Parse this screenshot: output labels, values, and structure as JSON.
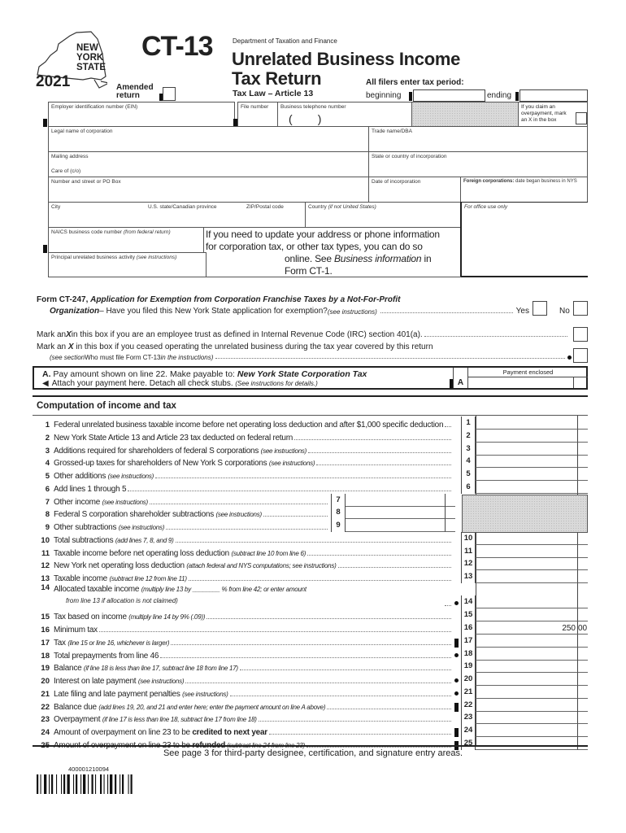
{
  "header": {
    "state_logo": "NEW YORK STATE",
    "year": "2021",
    "form_number": "CT-13",
    "department": "Department of Taxation and Finance",
    "title_line1": "Unrelated Business Income",
    "title_line2": "Tax Return",
    "tax_law": "Tax Law – Article 13",
    "amended_label_1": "Amended",
    "amended_label_2": "return",
    "tax_period_label": "All filers enter tax period:",
    "beginning_label": "beginning",
    "ending_label": "ending"
  },
  "identity": {
    "ein": "Employer identification number (EIN)",
    "file_number": "File number",
    "phone": "Business telephone number",
    "phone_parens": "(        )",
    "overpayment_1": "If you claim an",
    "overpayment_2": "overpayment, mark",
    "overpayment_3": "an X in the box",
    "legal_name": "Legal name of corporation",
    "trade_name": "Trade name/DBA",
    "mailing": "Mailing address",
    "care_of": "Care of (c/o)",
    "state_incorp": "State or country of incorporation",
    "street": "Number and street or PO Box",
    "date_incorp": "Date of incorporation",
    "foreign_bold": "Foreign corporations:",
    "foreign_rest": " date began business in NYS",
    "city": "City",
    "state_prov": "U.S. state/Canadian province",
    "zip": "ZIP/Postal code",
    "country": "Country ",
    "country_note": "(if not United States)",
    "office_use": "For office use only",
    "naics": "NAICS business code number ",
    "naics_note": "(from federal return)",
    "activity": "Principal unrelated business activity ",
    "activity_note": "(see instructions)",
    "notice_1": "If you need to update your address or phone information",
    "notice_2": "for corporation tax, or other tax types, you can do so",
    "notice_3a": "online. See ",
    "notice_3b": "Business information",
    "notice_3c": " in",
    "notice_4": "Form CT-1."
  },
  "questions": {
    "ct247_a": "Form CT-247, ",
    "ct247_b": "Application for Exemption from Corporation Franchise Taxes by a Not-For-Profit",
    "ct247_c": "Organization",
    "ct247_d": " – Have you filed this New York State application for exemption? ",
    "ct247_e": "(see instructions)",
    "yes": "Yes",
    "no": "No",
    "trust_a": "Mark an ",
    "trust_x": "X",
    "trust_b": " in this box if you are an employee trust as defined in Internal Revenue Code (IRC) section 401(a).",
    "ceased_b": " in this box if you ceased operating the unrelated business during the tax year covered by this return",
    "ceased_c": "(see section ",
    "ceased_d": "Who must file Form CT-13",
    "ceased_e": " in the instructions)"
  },
  "payment": {
    "a_label": "A.",
    "line1a": " Pay amount shown on line 22. Make payable to: ",
    "line1b": "New York State Corporation Tax",
    "line2a": "Attach your payment here. Detach all check stubs. ",
    "line2b": "(See instructions for details.)",
    "col": "A",
    "enclosed": "Payment enclosed"
  },
  "computation": {
    "heading": "Computation of income and tax",
    "lines": [
      {
        "n": "1",
        "parts": [
          {
            "t": "Federal unrelated business taxable income before net operating loss deduction and after $1,000 specific deduction"
          }
        ]
      },
      {
        "n": "2",
        "parts": [
          {
            "t": "New York State Article 13 and Article 23 tax deducted on federal return"
          }
        ]
      },
      {
        "n": "3",
        "parts": [
          {
            "t": "Additions required for shareholders of federal S corporations "
          },
          {
            "t": "(see instructions)",
            "s": "i"
          }
        ]
      },
      {
        "n": "4",
        "parts": [
          {
            "t": "Grossed-up taxes for shareholders of New York S corporations "
          },
          {
            "t": "(see instructions)",
            "s": "i"
          }
        ]
      },
      {
        "n": "5",
        "parts": [
          {
            "t": "Other additions "
          },
          {
            "t": "(see instructions)",
            "s": "i"
          }
        ]
      },
      {
        "n": "6",
        "parts": [
          {
            "t": "Add lines 1 through 5"
          }
        ]
      },
      {
        "n": "7",
        "inner": true,
        "parts": [
          {
            "t": "Other income "
          },
          {
            "t": "(see instructions)",
            "s": "i"
          }
        ]
      },
      {
        "n": "8",
        "inner": true,
        "parts": [
          {
            "t": "Federal S corporation shareholder subtractions "
          },
          {
            "t": "(see instructions)",
            "s": "i"
          }
        ]
      },
      {
        "n": "9",
        "inner": true,
        "parts": [
          {
            "t": "Other subtractions "
          },
          {
            "t": "(see instructions)",
            "s": "i"
          }
        ]
      },
      {
        "n": "10",
        "parts": [
          {
            "t": "Total subtractions "
          },
          {
            "t": "(add lines 7, 8, and 9)",
            "s": "i"
          }
        ]
      },
      {
        "n": "11",
        "parts": [
          {
            "t": "Taxable income before net operating loss deduction "
          },
          {
            "t": "(subtract line 10 from line 6)",
            "s": "i"
          }
        ]
      },
      {
        "n": "12",
        "parts": [
          {
            "t": "New York net operating loss deduction "
          },
          {
            "t": "(attach federal and NYS computations; see instructions)",
            "s": "i"
          }
        ]
      },
      {
        "n": "13",
        "parts": [
          {
            "t": "Taxable income "
          },
          {
            "t": "(subtract line 12 from line 11)",
            "s": "i"
          }
        ]
      },
      {
        "n": "14",
        "marker": "dot",
        "parts": [
          {
            "t": "Allocated taxable income "
          },
          {
            "t": "(multiply line 13 by ________ % from line 42; or enter amount",
            "s": "i"
          }
        ],
        "cont": "from line 13 if allocation is not claimed)"
      },
      {
        "n": "15",
        "parts": [
          {
            "t": "Tax based on income "
          },
          {
            "t": "(multiply line 14 by 9% (.09))",
            "s": "i"
          }
        ]
      },
      {
        "n": "16",
        "parts": [
          {
            "t": "Minimum tax"
          }
        ],
        "amount": "250",
        "cents": "00"
      },
      {
        "n": "17",
        "marker": "bar",
        "parts": [
          {
            "t": "Tax "
          },
          {
            "t": "(line 15 or line 16, whichever is larger)",
            "s": "i"
          }
        ]
      },
      {
        "n": "18",
        "marker": "dot",
        "parts": [
          {
            "t": "Total prepayments from line 46"
          }
        ]
      },
      {
        "n": "19",
        "parts": [
          {
            "t": "Balance "
          },
          {
            "t": "(if line 18 is less than line 17, subtract line 18 from line 17)",
            "s": "i"
          }
        ]
      },
      {
        "n": "20",
        "marker": "dot",
        "parts": [
          {
            "t": "Interest on late payment "
          },
          {
            "t": "(see instructions)",
            "s": "i"
          }
        ]
      },
      {
        "n": "21",
        "marker": "dot",
        "parts": [
          {
            "t": "Late filing and late payment penalties "
          },
          {
            "t": "(see instructions)",
            "s": "i"
          }
        ]
      },
      {
        "n": "22",
        "marker": "bar",
        "parts": [
          {
            "t": "Balance due "
          },
          {
            "t": "(add lines 19, 20, and 21 and enter here; enter the payment amount on line A above)",
            "s": "i"
          }
        ]
      },
      {
        "n": "23",
        "parts": [
          {
            "t": "Overpayment "
          },
          {
            "t": "(if line 17 is less than line 18, subtract line 17 from line 18)",
            "s": "i"
          }
        ]
      },
      {
        "n": "24",
        "marker": "bar",
        "parts": [
          {
            "t": "Amount of overpayment on line 23 to be "
          },
          {
            "t": "credited to next year",
            "s": "b"
          }
        ]
      },
      {
        "n": "25",
        "marker": "bar",
        "parts": [
          {
            "t": "Amount of overpayment on line 23 to be "
          },
          {
            "t": "refunded",
            "s": "b"
          },
          {
            "t": " (subtract line 24 from line 23)",
            "s": "i"
          }
        ]
      }
    ]
  },
  "footer": {
    "note": "See page 3 for third-party designee, certification, and signature entry areas.",
    "barcode_number": "400001210094"
  }
}
